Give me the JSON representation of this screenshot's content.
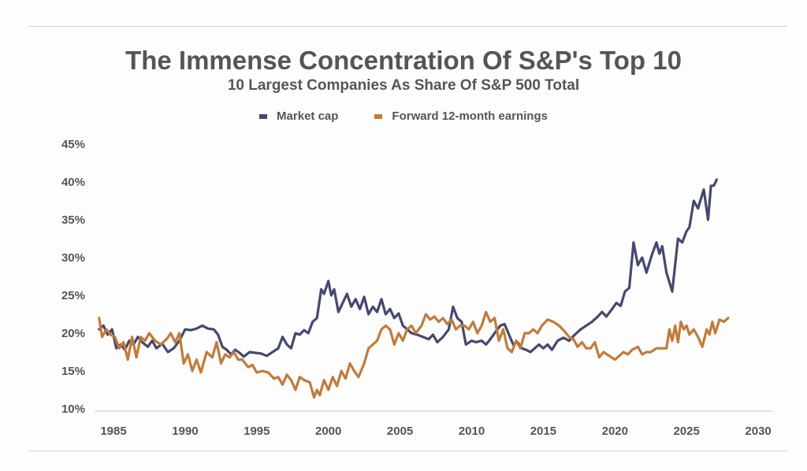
{
  "chart_data": {
    "type": "line",
    "title": "The Immense Concentration Of S&P's Top 10",
    "subtitle": "10 Largest Companies As Share Of S&P 500 Total",
    "xlabel": "",
    "ylabel": "",
    "xlim": [
      1983.8,
      2031.5
    ],
    "ylim": [
      10,
      45
    ],
    "grid": false,
    "legend_position": "top-center",
    "x_ticks": [
      1985,
      1990,
      1995,
      2000,
      2005,
      2010,
      2015,
      2020,
      2025,
      2030
    ],
    "y_ticks": [
      10,
      15,
      20,
      25,
      30,
      35,
      40,
      45
    ],
    "y_tick_labels": [
      "10%",
      "15%",
      "20%",
      "25%",
      "30%",
      "35%",
      "40%",
      "45%"
    ],
    "x_tick_labels": [
      "1985",
      "1990",
      "1995",
      "2000",
      "2005",
      "2010",
      "2015",
      "2020",
      "2025",
      "2030"
    ],
    "series": [
      {
        "name": "Market cap",
        "color": "#454870",
        "points": [
          [
            1984.0,
            20.5
          ],
          [
            1984.3,
            21.0
          ],
          [
            1984.6,
            19.8
          ],
          [
            1984.9,
            20.5
          ],
          [
            1985.2,
            18.0
          ],
          [
            1985.5,
            18.5
          ],
          [
            1985.8,
            17.8
          ],
          [
            1986.1,
            19.0
          ],
          [
            1986.4,
            18.5
          ],
          [
            1986.7,
            19.5
          ],
          [
            1987.0,
            18.8
          ],
          [
            1987.4,
            18.2
          ],
          [
            1987.7,
            19.0
          ],
          [
            1988.0,
            18.0
          ],
          [
            1988.4,
            18.6
          ],
          [
            1988.8,
            17.5
          ],
          [
            1989.2,
            18.0
          ],
          [
            1989.6,
            19.0
          ],
          [
            1990.0,
            20.5
          ],
          [
            1990.4,
            20.4
          ],
          [
            1990.8,
            20.6
          ],
          [
            1991.2,
            21.0
          ],
          [
            1991.6,
            20.6
          ],
          [
            1992.0,
            20.5
          ],
          [
            1992.3,
            19.8
          ],
          [
            1992.6,
            18.2
          ],
          [
            1992.9,
            17.8
          ],
          [
            1993.2,
            17.2
          ],
          [
            1993.5,
            17.8
          ],
          [
            1993.8,
            17.4
          ],
          [
            1994.1,
            16.9
          ],
          [
            1994.5,
            17.5
          ],
          [
            1994.9,
            17.4
          ],
          [
            1995.3,
            17.3
          ],
          [
            1995.7,
            17.0
          ],
          [
            1996.1,
            17.5
          ],
          [
            1996.5,
            18.0
          ],
          [
            1996.8,
            19.5
          ],
          [
            1997.1,
            18.5
          ],
          [
            1997.4,
            18.0
          ],
          [
            1997.7,
            20.0
          ],
          [
            1998.0,
            19.8
          ],
          [
            1998.3,
            20.4
          ],
          [
            1998.6,
            20.0
          ],
          [
            1998.9,
            21.5
          ],
          [
            1999.2,
            22.0
          ],
          [
            1999.5,
            25.8
          ],
          [
            1999.7,
            25.2
          ],
          [
            2000.0,
            26.9
          ],
          [
            2000.2,
            25.0
          ],
          [
            2000.4,
            25.8
          ],
          [
            2000.7,
            22.8
          ],
          [
            2001.0,
            24.0
          ],
          [
            2001.3,
            25.2
          ],
          [
            2001.6,
            23.5
          ],
          [
            2001.9,
            24.5
          ],
          [
            2002.2,
            23.2
          ],
          [
            2002.5,
            24.8
          ],
          [
            2002.8,
            22.5
          ],
          [
            2003.1,
            23.5
          ],
          [
            2003.4,
            22.8
          ],
          [
            2003.7,
            24.5
          ],
          [
            2004.0,
            22.5
          ],
          [
            2004.3,
            23.2
          ],
          [
            2004.6,
            22.0
          ],
          [
            2004.9,
            22.6
          ],
          [
            2005.2,
            21.0
          ],
          [
            2005.5,
            20.5
          ],
          [
            2005.8,
            20.0
          ],
          [
            2006.2,
            19.8
          ],
          [
            2006.6,
            19.5
          ],
          [
            2007.0,
            19.2
          ],
          [
            2007.3,
            19.8
          ],
          [
            2007.6,
            18.8
          ],
          [
            2008.0,
            19.5
          ],
          [
            2008.4,
            20.5
          ],
          [
            2008.7,
            23.5
          ],
          [
            2009.0,
            22.0
          ],
          [
            2009.3,
            21.5
          ],
          [
            2009.6,
            18.5
          ],
          [
            2010.0,
            19.0
          ],
          [
            2010.3,
            18.8
          ],
          [
            2010.7,
            19.0
          ],
          [
            2011.0,
            18.5
          ],
          [
            2011.3,
            19.2
          ],
          [
            2011.6,
            20.0
          ],
          [
            2012.0,
            21.0
          ],
          [
            2012.3,
            21.2
          ],
          [
            2012.6,
            19.8
          ],
          [
            2012.9,
            18.5
          ],
          [
            2013.2,
            18.8
          ],
          [
            2013.5,
            18.0
          ],
          [
            2013.8,
            17.8
          ],
          [
            2014.1,
            17.5
          ],
          [
            2014.4,
            18.0
          ],
          [
            2014.7,
            18.5
          ],
          [
            2015.0,
            18.0
          ],
          [
            2015.3,
            18.5
          ],
          [
            2015.6,
            17.8
          ],
          [
            2016.0,
            19.0
          ],
          [
            2016.4,
            19.4
          ],
          [
            2016.8,
            19.0
          ],
          [
            2017.2,
            19.8
          ],
          [
            2017.6,
            20.5
          ],
          [
            2018.0,
            21.0
          ],
          [
            2018.4,
            21.5
          ],
          [
            2018.8,
            22.2
          ],
          [
            2019.1,
            22.8
          ],
          [
            2019.4,
            22.2
          ],
          [
            2019.8,
            23.2
          ],
          [
            2020.1,
            24.0
          ],
          [
            2020.4,
            23.6
          ],
          [
            2020.7,
            25.5
          ],
          [
            2021.0,
            26.0
          ],
          [
            2021.3,
            32.0
          ],
          [
            2021.6,
            29.0
          ],
          [
            2021.9,
            30.0
          ],
          [
            2022.2,
            28.0
          ],
          [
            2022.6,
            30.5
          ],
          [
            2022.9,
            32.0
          ],
          [
            2023.1,
            30.5
          ],
          [
            2023.3,
            31.5
          ],
          [
            2023.6,
            28.0
          ],
          [
            2024.0,
            25.5
          ],
          [
            2024.4,
            32.5
          ],
          [
            2024.7,
            32.0
          ],
          [
            2025.0,
            33.5
          ],
          [
            2025.2,
            34.0
          ],
          [
            2025.5,
            37.5
          ],
          [
            2025.8,
            36.5
          ],
          [
            2026.2,
            39.0
          ],
          [
            2026.5,
            35.0
          ],
          [
            2026.7,
            39.5
          ],
          [
            2026.9,
            39.5
          ],
          [
            2027.1,
            40.3
          ]
        ]
      },
      {
        "name": "Forward 12-month earnings",
        "color": "#c17b3a",
        "points": [
          [
            1984.0,
            22.0
          ],
          [
            1984.2,
            19.5
          ],
          [
            1984.5,
            20.5
          ],
          [
            1984.8,
            19.8
          ],
          [
            1985.1,
            19.5
          ],
          [
            1985.4,
            18.0
          ],
          [
            1985.7,
            18.8
          ],
          [
            1986.0,
            16.5
          ],
          [
            1986.3,
            19.5
          ],
          [
            1986.6,
            16.8
          ],
          [
            1986.9,
            19.5
          ],
          [
            1987.2,
            19.0
          ],
          [
            1987.5,
            20.0
          ],
          [
            1987.9,
            19.0
          ],
          [
            1988.3,
            18.5
          ],
          [
            1988.7,
            19.2
          ],
          [
            1989.0,
            20.0
          ],
          [
            1989.3,
            18.8
          ],
          [
            1989.6,
            20.0
          ],
          [
            1989.9,
            16.0
          ],
          [
            1990.2,
            17.2
          ],
          [
            1990.5,
            15.0
          ],
          [
            1990.8,
            16.5
          ],
          [
            1991.1,
            14.8
          ],
          [
            1991.5,
            17.5
          ],
          [
            1991.9,
            16.8
          ],
          [
            1992.2,
            18.8
          ],
          [
            1992.5,
            16.0
          ],
          [
            1992.8,
            17.2
          ],
          [
            1993.1,
            16.8
          ],
          [
            1993.4,
            17.5
          ],
          [
            1993.7,
            16.5
          ],
          [
            1994.0,
            16.5
          ],
          [
            1994.4,
            15.5
          ],
          [
            1994.7,
            15.8
          ],
          [
            1995.0,
            14.8
          ],
          [
            1995.4,
            15.0
          ],
          [
            1995.8,
            14.8
          ],
          [
            1996.2,
            14.0
          ],
          [
            1996.5,
            14.2
          ],
          [
            1996.8,
            13.2
          ],
          [
            1997.1,
            14.5
          ],
          [
            1997.4,
            13.8
          ],
          [
            1997.7,
            12.5
          ],
          [
            1998.0,
            14.2
          ],
          [
            1998.3,
            13.8
          ],
          [
            1998.7,
            13.5
          ],
          [
            1999.0,
            11.5
          ],
          [
            1999.2,
            12.5
          ],
          [
            1999.4,
            11.8
          ],
          [
            1999.7,
            13.8
          ],
          [
            2000.0,
            12.5
          ],
          [
            2000.3,
            14.2
          ],
          [
            2000.6,
            13.0
          ],
          [
            2000.9,
            15.0
          ],
          [
            2001.2,
            14.0
          ],
          [
            2001.5,
            16.0
          ],
          [
            2001.8,
            15.0
          ],
          [
            2002.1,
            14.2
          ],
          [
            2002.5,
            16.0
          ],
          [
            2002.8,
            18.0
          ],
          [
            2003.1,
            18.5
          ],
          [
            2003.4,
            19.0
          ],
          [
            2003.7,
            20.5
          ],
          [
            2004.0,
            21.0
          ],
          [
            2004.3,
            20.5
          ],
          [
            2004.6,
            18.5
          ],
          [
            2004.9,
            20.0
          ],
          [
            2005.2,
            19.0
          ],
          [
            2005.5,
            20.5
          ],
          [
            2005.8,
            21.0
          ],
          [
            2006.1,
            20.0
          ],
          [
            2006.5,
            21.0
          ],
          [
            2006.8,
            22.5
          ],
          [
            2007.1,
            21.8
          ],
          [
            2007.4,
            22.2
          ],
          [
            2007.7,
            21.5
          ],
          [
            2008.0,
            22.0
          ],
          [
            2008.3,
            21.2
          ],
          [
            2008.6,
            21.8
          ],
          [
            2008.9,
            20.5
          ],
          [
            2009.2,
            21.0
          ],
          [
            2009.5,
            21.0
          ],
          [
            2009.8,
            20.5
          ],
          [
            2010.1,
            21.5
          ],
          [
            2010.4,
            20.0
          ],
          [
            2010.7,
            21.0
          ],
          [
            2011.0,
            22.8
          ],
          [
            2011.3,
            21.5
          ],
          [
            2011.6,
            22.0
          ],
          [
            2011.9,
            19.0
          ],
          [
            2012.2,
            20.5
          ],
          [
            2012.5,
            18.0
          ],
          [
            2012.8,
            17.5
          ],
          [
            2013.1,
            19.0
          ],
          [
            2013.4,
            18.0
          ],
          [
            2013.7,
            20.0
          ],
          [
            2014.0,
            20.0
          ],
          [
            2014.3,
            20.5
          ],
          [
            2014.6,
            20.0
          ],
          [
            2014.9,
            21.0
          ],
          [
            2015.3,
            21.8
          ],
          [
            2015.7,
            21.5
          ],
          [
            2016.1,
            21.0
          ],
          [
            2016.5,
            20.2
          ],
          [
            2016.8,
            19.5
          ],
          [
            2017.1,
            19.2
          ],
          [
            2017.4,
            18.2
          ],
          [
            2017.7,
            18.8
          ],
          [
            2018.0,
            18.0
          ],
          [
            2018.3,
            18.0
          ],
          [
            2018.6,
            18.8
          ],
          [
            2018.9,
            16.8
          ],
          [
            2019.2,
            17.5
          ],
          [
            2019.6,
            17.0
          ],
          [
            2020.0,
            16.5
          ],
          [
            2020.3,
            17.0
          ],
          [
            2020.6,
            17.5
          ],
          [
            2020.9,
            17.2
          ],
          [
            2021.2,
            17.8
          ],
          [
            2021.6,
            18.2
          ],
          [
            2021.9,
            17.2
          ],
          [
            2022.2,
            17.5
          ],
          [
            2022.5,
            17.5
          ],
          [
            2022.9,
            18.0
          ],
          [
            2023.3,
            18.0
          ],
          [
            2023.6,
            18.0
          ],
          [
            2023.8,
            20.5
          ],
          [
            2024.0,
            19.0
          ],
          [
            2024.2,
            21.0
          ],
          [
            2024.4,
            18.8
          ],
          [
            2024.6,
            21.5
          ],
          [
            2024.8,
            20.5
          ],
          [
            2025.0,
            21.0
          ],
          [
            2025.2,
            19.8
          ],
          [
            2025.5,
            20.5
          ],
          [
            2025.8,
            19.5
          ],
          [
            2026.1,
            18.2
          ],
          [
            2026.4,
            20.5
          ],
          [
            2026.6,
            19.8
          ],
          [
            2026.8,
            21.5
          ],
          [
            2027.0,
            20.0
          ],
          [
            2027.3,
            21.8
          ],
          [
            2027.6,
            21.5
          ],
          [
            2027.9,
            22.0
          ]
        ]
      }
    ]
  },
  "legend": [
    {
      "label": "Market cap",
      "color": "#454870"
    },
    {
      "label": "Forward 12-month earnings",
      "color": "#c17b3a"
    }
  ]
}
